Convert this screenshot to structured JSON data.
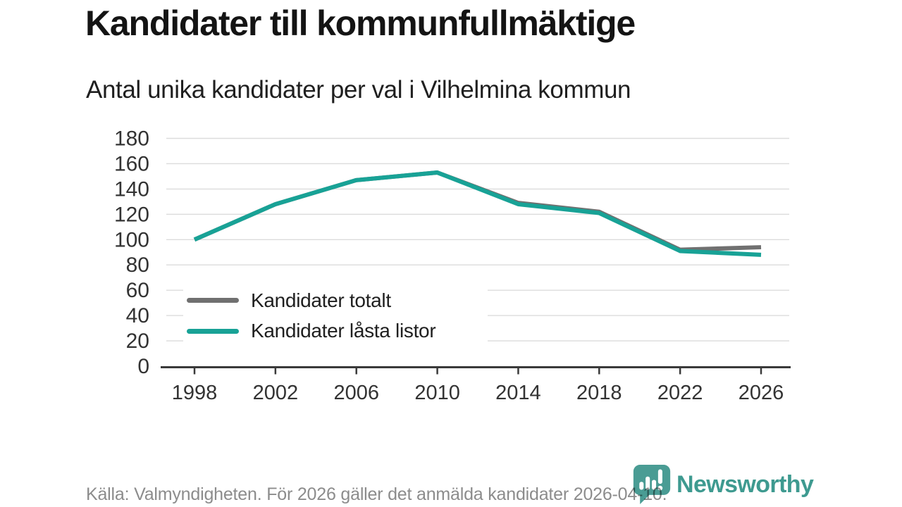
{
  "chart_data": {
    "type": "line",
    "title": "Kandidater till kommunfullmäktige",
    "subtitle": "Antal unika kandidater per val i Vilhelmina kommun",
    "x": [
      1998,
      2002,
      2006,
      2010,
      2014,
      2018,
      2022,
      2026
    ],
    "series": [
      {
        "name": "Kandidater totalt",
        "color": "#707070",
        "values": [
          100,
          128,
          147,
          153,
          129,
          122,
          92,
          94
        ]
      },
      {
        "name": "Kandidater låsta listor",
        "color": "#18a296",
        "values": [
          100,
          128,
          147,
          153,
          128,
          121,
          91,
          88
        ]
      }
    ],
    "ylim": [
      0,
      180
    ],
    "ytick_step": 20,
    "grid": true,
    "legend_position": "inside bottom-left",
    "axis_color": "#3a3a3a",
    "grid_color": "#dcdcdc",
    "tick_label_color": "#333333"
  },
  "footer": {
    "source": "Källa: Valmyndigheten. För 2026 gäller det anmälda kandidater 2026-04-10.",
    "brand": "Newsworthy",
    "brand_color": "#3e9a90",
    "logo_fill": "#4a9c94"
  }
}
